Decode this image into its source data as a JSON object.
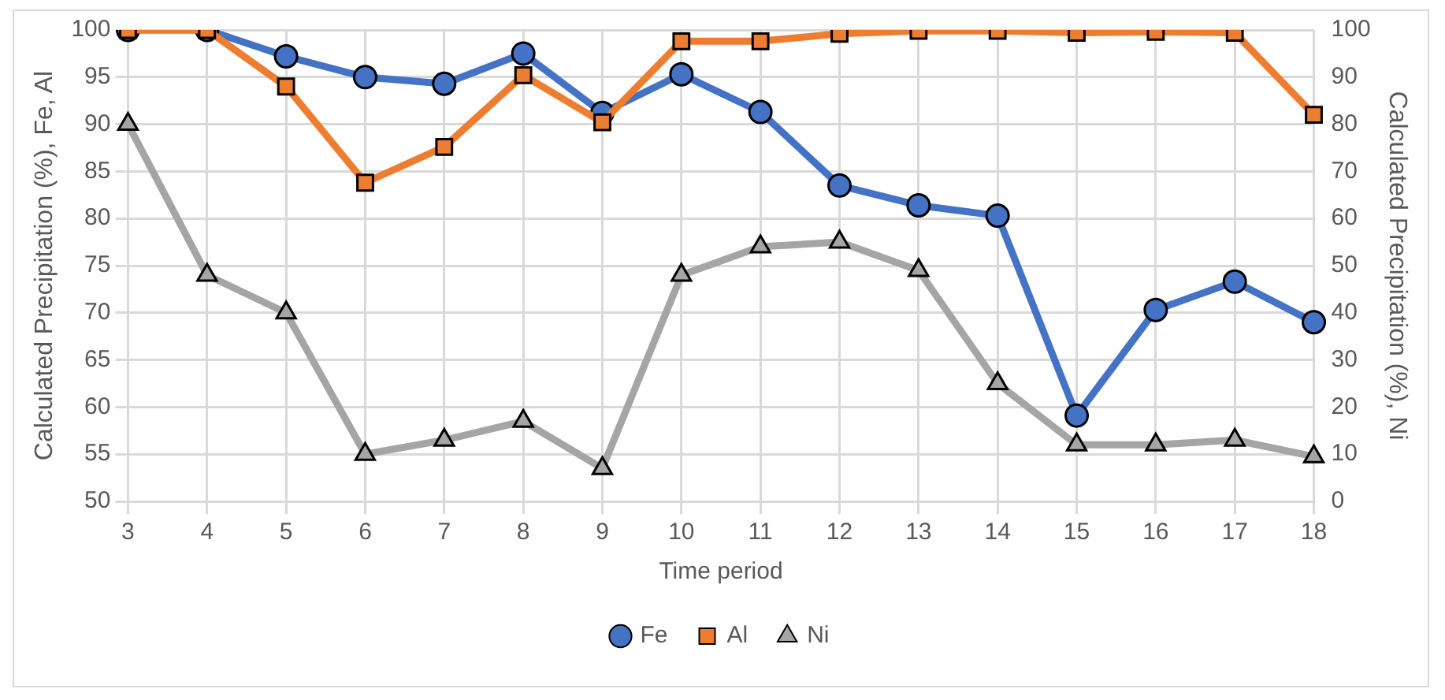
{
  "chart_data": {
    "type": "line",
    "xlabel": "Time period",
    "ylabel": "Calculated Precipitation (%), Fe, Al",
    "y2label": "Calculated Precipitation (%), Ni",
    "categories": [
      "3",
      "4",
      "5",
      "6",
      "7",
      "8",
      "9",
      "10",
      "11",
      "12",
      "13",
      "14",
      "15",
      "16",
      "17",
      "18"
    ],
    "series": [
      {
        "name": "Fe",
        "color": "#4472c4",
        "marker": "circle",
        "values": [
          100,
          100,
          97.2,
          95,
          94.3,
          97.5,
          91.2,
          95.3,
          91.3,
          83.5,
          81.4,
          80.3,
          59.1,
          70.3,
          73.3,
          69
        ]
      },
      {
        "name": "Al",
        "color": "#ed7d31",
        "marker": "square",
        "values": [
          100,
          100,
          94,
          83.8,
          87.6,
          95.2,
          90.2,
          98.8,
          98.8,
          99.6,
          99.9,
          99.9,
          99.7,
          99.8,
          99.7,
          91
        ]
      },
      {
        "name": "Ni",
        "color": "#a5a5a5",
        "marker": "triangle",
        "axis": "y2",
        "values": [
          80,
          48,
          40,
          10,
          13,
          17,
          7,
          48,
          54,
          55,
          49,
          25,
          12,
          12,
          13,
          9.5
        ]
      }
    ],
    "ylim": [
      50,
      100
    ],
    "yticks": [
      50,
      55,
      60,
      65,
      70,
      75,
      80,
      85,
      90,
      95,
      100
    ],
    "y2lim": [
      0,
      100
    ],
    "y2ticks": [
      0,
      10,
      20,
      30,
      40,
      50,
      60,
      70,
      80,
      90,
      100
    ],
    "grid": true,
    "legend": "bottom"
  }
}
